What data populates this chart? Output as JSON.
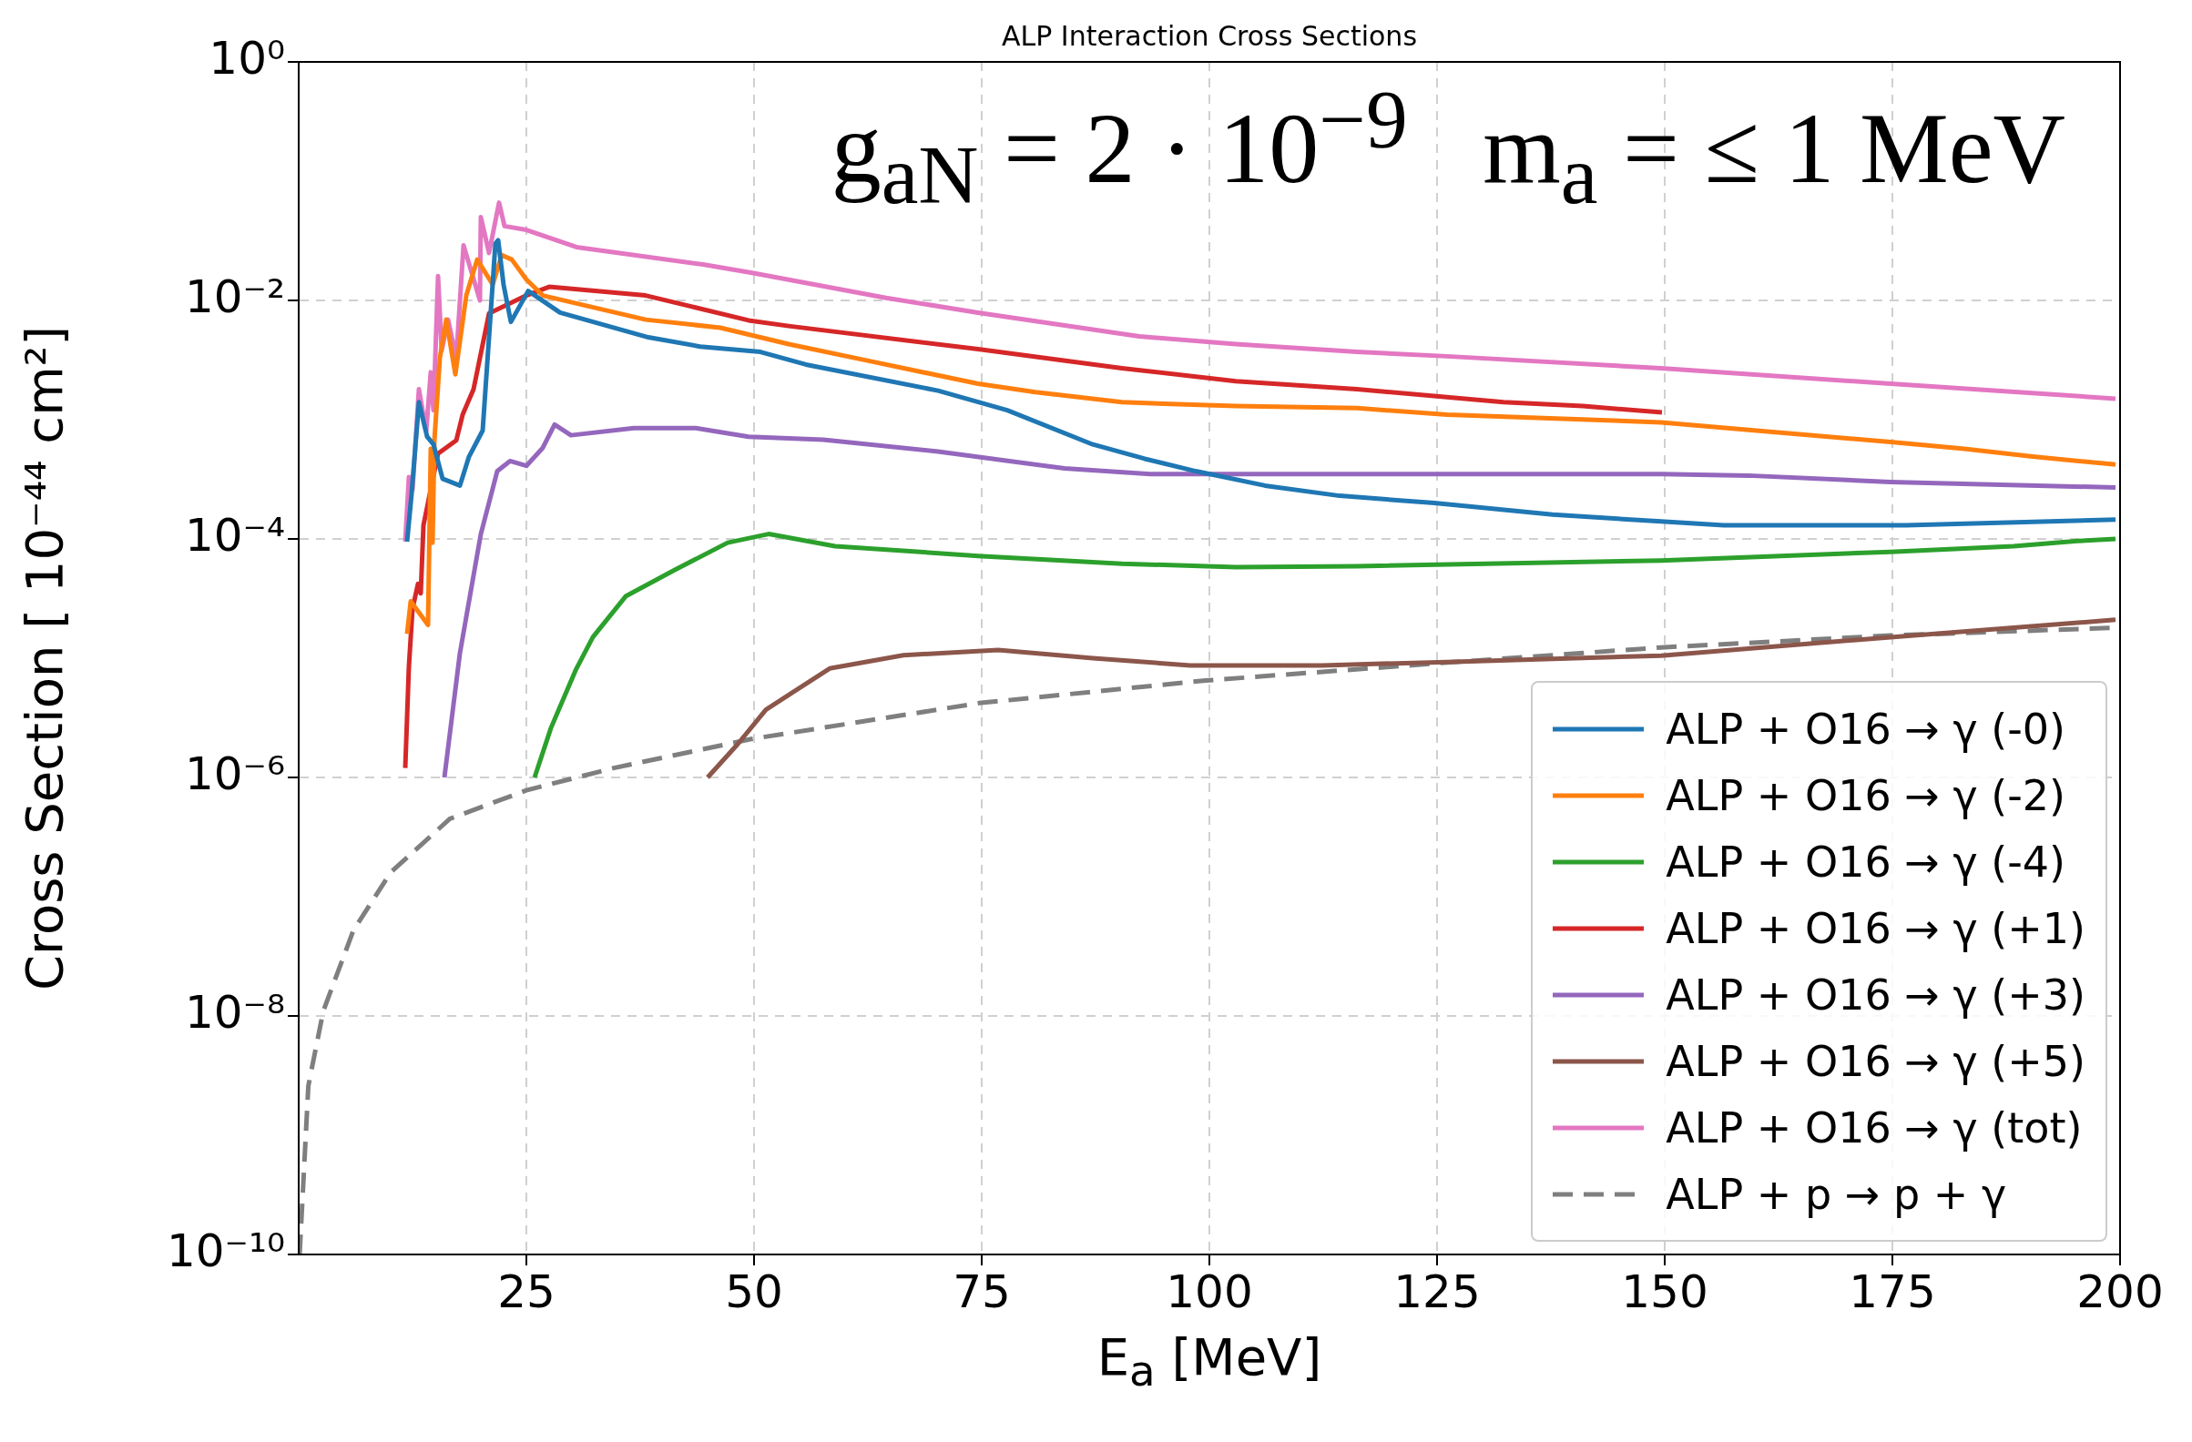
{
  "chart_data": {
    "type": "line",
    "title": "ALP Interaction Cross Sections",
    "xlabel": "E$_{a}$ [MeV]",
    "ylabel": "Cross Section [ 10⁻⁴⁴ cm²]",
    "annotations": [
      "g$_{aN}$ = 2 · 10$^{−9}$   m$_{a}$ = ≤ 1 MeV"
    ],
    "xlim": [
      0,
      200
    ],
    "xticks": [
      25,
      50,
      75,
      100,
      125,
      150,
      175,
      200
    ],
    "ylim": [
      1e-10,
      1
    ],
    "log": "y",
    "yticks": [
      {
        "value": 1e-10,
        "label": "10⁻¹⁰"
      },
      {
        "value": 1e-08,
        "label": "10⁻⁸"
      },
      {
        "value": 1e-06,
        "label": "10⁻⁶"
      },
      {
        "value": 0.0001,
        "label": "10⁻⁴"
      },
      {
        "value": 0.01,
        "label": "10⁻²"
      },
      {
        "value": 1,
        "label": "10⁰"
      }
    ],
    "grid": true,
    "legend": "bottom right",
    "series": [
      {
        "name": "ALP + O16 → γ (-0)",
        "color": "#1f77b4",
        "x": [
          11.9,
          12.4,
          13.2,
          14.1,
          14.8,
          15.8,
          17.7,
          18.7,
          20.2,
          21.6,
          21.9,
          22.5,
          23.3,
          25.2,
          28.7,
          38.4,
          44.1,
          50.7,
          55.7,
          70.2,
          77.8,
          87.2,
          92.9,
          98.5,
          106.1,
          114.3,
          124.7,
          137.7,
          149.6,
          156.5,
          176.5,
          199.5
        ],
        "values": [
          9.5e-05,
          0.00024,
          0.0014,
          0.00072,
          0.00062,
          0.00032,
          0.00028,
          0.00049,
          0.00081,
          0.03,
          0.032,
          0.0135,
          0.0066,
          0.012,
          0.0079,
          0.0049,
          0.0041,
          0.0037,
          0.0029,
          0.00175,
          0.0012,
          0.00062,
          0.00047,
          0.00037,
          0.00028,
          0.00023,
          0.0002,
          0.00016,
          0.00014,
          0.00013,
          0.00013,
          0.000145
        ]
      },
      {
        "name": "ALP + O16 → γ (-2)",
        "color": "#ff7f0e",
        "x": [
          11.9,
          12.3,
          14.2,
          14.5,
          14.7,
          14.9,
          15.5,
          16.2,
          17.2,
          18.4,
          19.6,
          21.3,
          22.3,
          23.4,
          25.0,
          26.8,
          38.1,
          46.3,
          53.8,
          62.7,
          74.6,
          80.9,
          90.4,
          102.9,
          116.2,
          126.1,
          149.6,
          174.8,
          182.9,
          190.4,
          199.5
        ],
        "values": [
          1.6e-05,
          3e-05,
          1.9e-05,
          0.00057,
          9.3e-05,
          0.00067,
          0.0033,
          0.0069,
          0.0024,
          0.011,
          0.022,
          0.0136,
          0.024,
          0.022,
          0.015,
          0.011,
          0.0069,
          0.0059,
          0.0043,
          0.0031,
          0.002,
          0.0017,
          0.0014,
          0.0013,
          0.00125,
          0.0011,
          0.00095,
          0.00065,
          0.00057,
          0.00049,
          0.00042
        ]
      },
      {
        "name": "ALP + O16 → γ (-4)",
        "color": "#2ca02c",
        "x": [
          25.9,
          27.7,
          30.4,
          32.3,
          35.9,
          41.3,
          47.1,
          51.6,
          58.9,
          74.6,
          90.4,
          102.9,
          116.2,
          149.6,
          174.8,
          188.3,
          195.3,
          199.5
        ],
        "values": [
          1e-06,
          2.6e-06,
          7.9e-06,
          1.5e-05,
          3.3e-05,
          5.5e-05,
          9.3e-05,
          0.00011,
          8.7e-05,
          7.2e-05,
          6.2e-05,
          5.8e-05,
          5.9e-05,
          6.6e-05,
          7.8e-05,
          8.7e-05,
          9.6e-05,
          0.0001
        ]
      },
      {
        "name": "ALP + O16 → γ (+1)",
        "color": "#d62728",
        "x": [
          11.7,
          12.1,
          12.5,
          13.1,
          13.4,
          13.7,
          15.3,
          17.3,
          18.0,
          19.2,
          20.9,
          25.0,
          27.5,
          38.1,
          43.1,
          49.4,
          53.8,
          74.6,
          90.4,
          102.9,
          116.2,
          132.3,
          141.0,
          149.7
        ],
        "values": [
          1.2e-06,
          8.5e-06,
          2.6e-05,
          4.2e-05,
          3.5e-05,
          0.00013,
          0.00052,
          0.00067,
          0.0011,
          0.0018,
          0.0078,
          0.011,
          0.013,
          0.011,
          0.0089,
          0.0068,
          0.0061,
          0.0039,
          0.0027,
          0.0021,
          0.0018,
          0.0014,
          0.0013,
          0.00115
        ]
      },
      {
        "name": "ALP + O16 → γ (+3)",
        "color": "#9467bd",
        "x": [
          16.0,
          17.7,
          20.0,
          21.8,
          23.2,
          25.0,
          26.8,
          28.1,
          29.9,
          36.8,
          43.6,
          49.4,
          57.6,
          70.2,
          84.1,
          93.5,
          126.1,
          149.6,
          159.2,
          174.8,
          199.5
        ],
        "values": [
          1e-06,
          1.1e-05,
          0.00011,
          0.00037,
          0.00045,
          0.00041,
          0.00058,
          0.00091,
          0.00074,
          0.00085,
          0.00085,
          0.00072,
          0.00068,
          0.00054,
          0.00039,
          0.00035,
          0.00035,
          0.00035,
          0.00034,
          0.0003,
          0.00027
        ]
      },
      {
        "name": "ALP + O16 → γ (+5)",
        "color": "#8c564b",
        "x": [
          44.9,
          48.2,
          51.3,
          58.3,
          66.4,
          76.8,
          87.2,
          97.9,
          112.4,
          126.1,
          149.6,
          174.8,
          199.5
        ],
        "values": [
          1e-06,
          1.9e-06,
          3.7e-06,
          8.2e-06,
          1.06e-05,
          1.17e-05,
          1e-05,
          8.7e-06,
          8.7e-06,
          9.3e-06,
          1.05e-05,
          1.5e-05,
          2.1e-05
        ]
      },
      {
        "name": "ALP + O16 → γ (tot)",
        "color": "#e377c2",
        "x": [
          11.7,
          12.1,
          12.5,
          13.2,
          14.0,
          14.5,
          14.8,
          15.3,
          15.7,
          16.4,
          17.3,
          18.1,
          19.9,
          20.0,
          20.9,
          22.0,
          22.6,
          25.0,
          30.5,
          44.4,
          49.8,
          64.5,
          74.6,
          92.3,
          102.9,
          116.2,
          126.1,
          149.6,
          174.8,
          199.5
        ],
        "values": [
          9.5e-05,
          0.00033,
          0.00026,
          0.0018,
          0.0008,
          0.0025,
          0.0012,
          0.016,
          0.0038,
          0.0069,
          0.0033,
          0.029,
          0.01,
          0.05,
          0.025,
          0.066,
          0.042,
          0.039,
          0.028,
          0.02,
          0.017,
          0.0105,
          0.0079,
          0.005,
          0.0043,
          0.0037,
          0.0034,
          0.0027,
          0.002,
          0.0015
        ]
      },
      {
        "name": "ALP + p → p + γ",
        "color": "#7f7f7f",
        "line_style": "dashed",
        "x": [
          0.1,
          1.06,
          2.7,
          6.0,
          10.1,
          16.6,
          25.0,
          34.6,
          49.7,
          74.7,
          99.6,
          125.4,
          149.6,
          174.8,
          199.5
        ],
        "values": [
          1e-10,
          2.6e-09,
          1.1e-08,
          5.2e-08,
          1.6e-07,
          4.5e-07,
          7.8e-07,
          1.2e-06,
          2.1e-06,
          4.2e-06,
          6.5e-06,
          9.1e-06,
          1.23e-05,
          1.55e-05,
          1.8e-05
        ]
      }
    ]
  }
}
